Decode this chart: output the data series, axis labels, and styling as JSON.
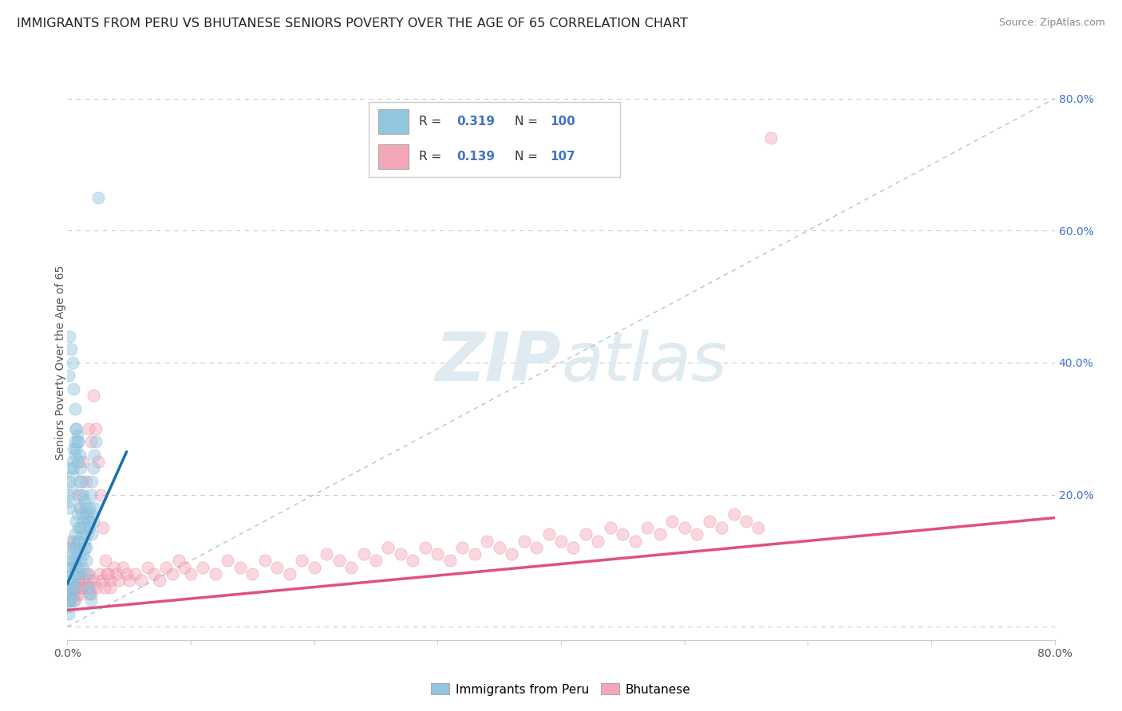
{
  "title": "IMMIGRANTS FROM PERU VS BHUTANESE SENIORS POVERTY OVER THE AGE OF 65 CORRELATION CHART",
  "source": "Source: ZipAtlas.com",
  "ylabel": "Seniors Poverty Over the Age of 65",
  "xlim": [
    0.0,
    0.8
  ],
  "ylim": [
    -0.02,
    0.82
  ],
  "blue_color": "#92c5de",
  "blue_edge_color": "#6baed6",
  "pink_color": "#f4a7b9",
  "pink_edge_color": "#e07090",
  "blue_line_color": "#1a6faf",
  "pink_line_color": "#e05080",
  "diag_line_color": "#aac4e0",
  "legend_text_color": "#4472c4",
  "legend_label_blue": "Immigrants from Peru",
  "legend_label_pink": "Bhutanese",
  "watermark_zip": "ZIP",
  "watermark_atlas": "atlas",
  "bg_color": "#ffffff",
  "title_fontsize": 11.5,
  "axis_label_fontsize": 10,
  "tick_fontsize": 10,
  "scatter_size": 120,
  "scatter_alpha": 0.45,
  "peru_x": [
    0.001,
    0.001,
    0.001,
    0.001,
    0.002,
    0.002,
    0.002,
    0.002,
    0.002,
    0.003,
    0.003,
    0.003,
    0.003,
    0.004,
    0.004,
    0.004,
    0.005,
    0.005,
    0.005,
    0.005,
    0.006,
    0.006,
    0.006,
    0.007,
    0.007,
    0.007,
    0.008,
    0.008,
    0.008,
    0.009,
    0.009,
    0.01,
    0.01,
    0.01,
    0.011,
    0.011,
    0.012,
    0.012,
    0.013,
    0.013,
    0.014,
    0.015,
    0.015,
    0.016,
    0.017,
    0.018,
    0.019,
    0.02,
    0.021,
    0.022,
    0.001,
    0.001,
    0.002,
    0.002,
    0.003,
    0.003,
    0.004,
    0.004,
    0.005,
    0.005,
    0.006,
    0.006,
    0.007,
    0.007,
    0.008,
    0.009,
    0.01,
    0.011,
    0.012,
    0.013,
    0.014,
    0.015,
    0.016,
    0.017,
    0.018,
    0.019,
    0.02,
    0.021,
    0.022,
    0.023,
    0.001,
    0.002,
    0.003,
    0.004,
    0.005,
    0.006,
    0.007,
    0.008,
    0.009,
    0.01,
    0.011,
    0.012,
    0.013,
    0.014,
    0.015,
    0.016,
    0.017,
    0.018,
    0.019,
    0.025
  ],
  "peru_y": [
    0.02,
    0.03,
    0.04,
    0.06,
    0.04,
    0.05,
    0.07,
    0.09,
    0.1,
    0.05,
    0.07,
    0.09,
    0.12,
    0.06,
    0.08,
    0.11,
    0.04,
    0.07,
    0.1,
    0.13,
    0.06,
    0.09,
    0.14,
    0.08,
    0.12,
    0.16,
    0.09,
    0.13,
    0.17,
    0.11,
    0.15,
    0.08,
    0.13,
    0.18,
    0.1,
    0.15,
    0.09,
    0.14,
    0.11,
    0.16,
    0.13,
    0.12,
    0.17,
    0.14,
    0.16,
    0.15,
    0.17,
    0.14,
    0.16,
    0.18,
    0.18,
    0.2,
    0.19,
    0.22,
    0.21,
    0.24,
    0.23,
    0.25,
    0.24,
    0.27,
    0.26,
    0.28,
    0.27,
    0.3,
    0.29,
    0.28,
    0.26,
    0.24,
    0.22,
    0.2,
    0.19,
    0.18,
    0.17,
    0.16,
    0.18,
    0.2,
    0.22,
    0.24,
    0.26,
    0.28,
    0.38,
    0.44,
    0.42,
    0.4,
    0.36,
    0.33,
    0.3,
    0.28,
    0.25,
    0.22,
    0.2,
    0.17,
    0.15,
    0.12,
    0.1,
    0.08,
    0.06,
    0.05,
    0.04,
    0.65
  ],
  "bhutan_x": [
    0.001,
    0.002,
    0.003,
    0.004,
    0.005,
    0.006,
    0.007,
    0.008,
    0.009,
    0.01,
    0.011,
    0.012,
    0.013,
    0.014,
    0.015,
    0.016,
    0.017,
    0.018,
    0.019,
    0.02,
    0.022,
    0.024,
    0.026,
    0.028,
    0.03,
    0.032,
    0.035,
    0.038,
    0.04,
    0.042,
    0.045,
    0.048,
    0.05,
    0.055,
    0.06,
    0.065,
    0.07,
    0.075,
    0.08,
    0.085,
    0.09,
    0.095,
    0.1,
    0.11,
    0.12,
    0.13,
    0.14,
    0.15,
    0.16,
    0.17,
    0.18,
    0.19,
    0.2,
    0.21,
    0.22,
    0.23,
    0.24,
    0.25,
    0.26,
    0.27,
    0.28,
    0.29,
    0.3,
    0.31,
    0.32,
    0.33,
    0.34,
    0.35,
    0.36,
    0.37,
    0.38,
    0.39,
    0.4,
    0.41,
    0.42,
    0.43,
    0.44,
    0.45,
    0.46,
    0.47,
    0.48,
    0.49,
    0.5,
    0.51,
    0.52,
    0.53,
    0.54,
    0.55,
    0.56,
    0.003,
    0.005,
    0.007,
    0.009,
    0.011,
    0.013,
    0.015,
    0.017,
    0.019,
    0.021,
    0.023,
    0.025,
    0.027,
    0.029,
    0.031,
    0.033,
    0.035,
    0.57
  ],
  "bhutan_y": [
    0.04,
    0.05,
    0.04,
    0.06,
    0.05,
    0.04,
    0.06,
    0.05,
    0.07,
    0.06,
    0.05,
    0.07,
    0.06,
    0.08,
    0.07,
    0.06,
    0.08,
    0.07,
    0.05,
    0.06,
    0.07,
    0.06,
    0.08,
    0.07,
    0.06,
    0.08,
    0.07,
    0.09,
    0.08,
    0.07,
    0.09,
    0.08,
    0.07,
    0.08,
    0.07,
    0.09,
    0.08,
    0.07,
    0.09,
    0.08,
    0.1,
    0.09,
    0.08,
    0.09,
    0.08,
    0.1,
    0.09,
    0.08,
    0.1,
    0.09,
    0.08,
    0.1,
    0.09,
    0.11,
    0.1,
    0.09,
    0.11,
    0.1,
    0.12,
    0.11,
    0.1,
    0.12,
    0.11,
    0.1,
    0.12,
    0.11,
    0.13,
    0.12,
    0.11,
    0.13,
    0.12,
    0.14,
    0.13,
    0.12,
    0.14,
    0.13,
    0.15,
    0.14,
    0.13,
    0.15,
    0.14,
    0.16,
    0.15,
    0.14,
    0.16,
    0.15,
    0.17,
    0.16,
    0.15,
    0.13,
    0.12,
    0.1,
    0.2,
    0.18,
    0.25,
    0.22,
    0.3,
    0.28,
    0.35,
    0.3,
    0.25,
    0.2,
    0.15,
    0.1,
    0.08,
    0.06,
    0.74
  ],
  "blue_line_x": [
    0.0,
    0.048
  ],
  "blue_line_y": [
    0.065,
    0.265
  ],
  "pink_line_x": [
    0.0,
    0.8
  ],
  "pink_line_y": [
    0.025,
    0.165
  ],
  "grid_yticks": [
    0.0,
    0.2,
    0.4,
    0.6,
    0.8
  ],
  "right_ytick_labels": [
    "",
    "20.0%",
    "40.0%",
    "60.0%",
    "80.0%"
  ]
}
